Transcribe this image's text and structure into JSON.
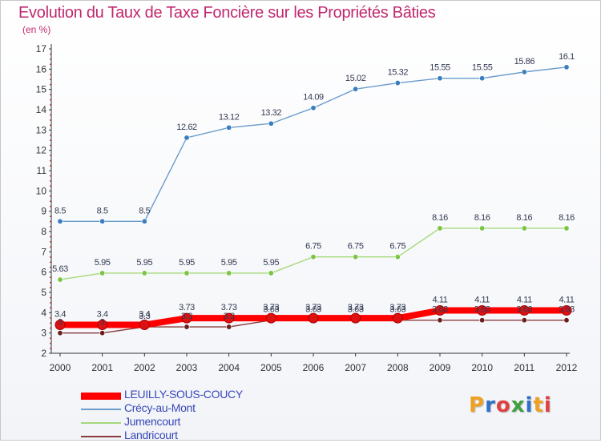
{
  "title": "Evolution du Taux de Taxe Foncière sur les Propriétés Bâties",
  "subtitle": "(en %)",
  "logo": {
    "text": "Proxiti",
    "letter_colors": [
      "#f0a020",
      "#3070c8",
      "#e04040",
      "#40a040",
      "#3070c8",
      "#f0a020",
      "#e04040"
    ]
  },
  "chart_data": {
    "type": "line",
    "title": "Evolution du Taux de Taxe Foncière sur les Propriétés Bâties",
    "subtitle": "(en %)",
    "xlabel": "",
    "ylabel": "",
    "x": [
      "2000",
      "2001",
      "2002",
      "2003",
      "2004",
      "2005",
      "2006",
      "2007",
      "2008",
      "2009",
      "2010",
      "2011",
      "2012"
    ],
    "ylim": [
      2,
      17
    ],
    "yticks": [
      "2",
      "3",
      "4",
      "5",
      "6",
      "7",
      "8",
      "9",
      "10",
      "11",
      "12",
      "13",
      "14",
      "15",
      "16",
      "17"
    ],
    "grid": false,
    "legend_position": "bottom-left",
    "series": [
      {
        "name": "LEUILLY-SOUS-COUCY",
        "color": "#ff0000",
        "marker_color": "#dd1111",
        "emphasis": true,
        "values": [
          3.4,
          3.4,
          3.4,
          3.73,
          3.73,
          3.73,
          3.73,
          3.73,
          3.73,
          4.11,
          4.11,
          4.11,
          4.11
        ],
        "labels": [
          "3.4",
          "3.4",
          "3.4",
          "3.73",
          "3.73",
          "3.73",
          "3.73",
          "3.73",
          "3.73",
          "4.11",
          "4.11",
          "4.11",
          "4.11"
        ]
      },
      {
        "name": "Crécy-au-Mont",
        "color": "#6a9ccc",
        "marker_color": "#3a7ebf",
        "emphasis": false,
        "values": [
          8.5,
          8.5,
          8.5,
          12.62,
          13.12,
          13.32,
          14.09,
          15.02,
          15.32,
          15.55,
          15.55,
          15.86,
          16.1
        ],
        "labels": [
          "8.5",
          "8.5",
          "8.5",
          "12.62",
          "13.12",
          "13.32",
          "14.09",
          "15.02",
          "15.32",
          "15.55",
          "15.55",
          "15.86",
          "16.1"
        ]
      },
      {
        "name": "Jumencourt",
        "color": "#a6d97a",
        "marker_color": "#7cc443",
        "emphasis": false,
        "values": [
          5.63,
          5.95,
          5.95,
          5.95,
          5.95,
          5.95,
          6.75,
          6.75,
          6.75,
          8.16,
          8.16,
          8.16,
          8.16
        ],
        "labels": [
          "5.63",
          "5.95",
          "5.95",
          "5.95",
          "5.95",
          "5.95",
          "6.75",
          "6.75",
          "6.75",
          "8.16",
          "8.16",
          "8.16",
          "8.16"
        ]
      },
      {
        "name": "Landricourt",
        "color": "#8a3a3a",
        "marker_color": "#6a1e1e",
        "emphasis": false,
        "values": [
          3,
          3,
          3.3,
          3.3,
          3.3,
          3.63,
          3.63,
          3.63,
          3.63,
          3.63,
          3.63,
          3.63,
          3.63
        ],
        "labels": [
          "3",
          "3",
          "3.3",
          "3.3",
          "3.3",
          "3.63",
          "3.63",
          "3.63",
          "3.63",
          "3.63",
          "3.63",
          "3.63",
          "3.63"
        ]
      }
    ]
  }
}
